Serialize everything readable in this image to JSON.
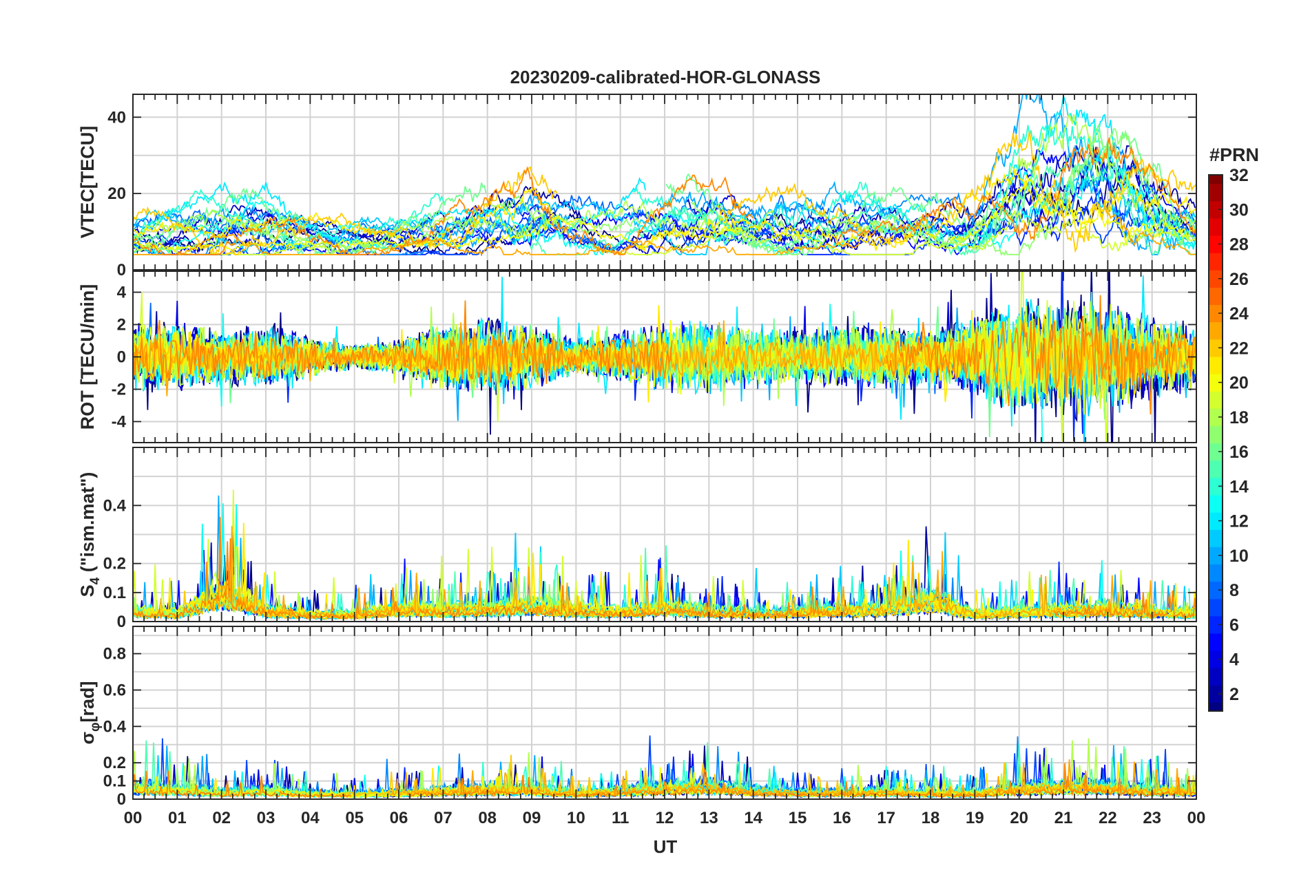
{
  "chart_data": {
    "type": "line",
    "title": "20230209-calibrated-HOR-GLONASS",
    "xlabel": "UT",
    "x_ticks": [
      "00",
      "01",
      "02",
      "03",
      "04",
      "05",
      "06",
      "07",
      "08",
      "09",
      "10",
      "11",
      "12",
      "13",
      "14",
      "15",
      "16",
      "17",
      "18",
      "19",
      "20",
      "21",
      "22",
      "23",
      "00"
    ],
    "x_range_hours": [
      0,
      24
    ],
    "grid": true,
    "colorbar": {
      "label": "#PRN",
      "range": [
        1,
        32
      ],
      "ticks": [
        2,
        4,
        6,
        8,
        10,
        12,
        14,
        16,
        18,
        20,
        22,
        24,
        26,
        28,
        30,
        32
      ],
      "tick_labels": [
        "2",
        "4",
        "6",
        "8",
        "10",
        "12",
        "14",
        "16",
        "18",
        "20",
        "22",
        "24",
        "26",
        "28",
        "30",
        "32"
      ],
      "colormap": "jet",
      "placement": "right"
    },
    "prn_series": [
      1,
      2,
      3,
      4,
      5,
      6,
      7,
      8,
      9,
      10,
      11,
      12,
      13,
      14,
      15,
      16,
      17,
      18,
      19,
      20,
      21,
      22,
      23,
      24
    ],
    "panels": [
      {
        "id": "vtec",
        "ylabel": "VTEC[TECU]",
        "ylim": [
          0,
          46
        ],
        "yticks": [
          0,
          20,
          40
        ],
        "ytick_labels": [
          "0",
          "20",
          "40"
        ],
        "hgrid": [
          0,
          10,
          20,
          30,
          40
        ],
        "signal": "vtec",
        "envelope_h": [
          0,
          1,
          2,
          3,
          4,
          5,
          6,
          7,
          8,
          9,
          10,
          11,
          12,
          13,
          14,
          15,
          16,
          17,
          18,
          19,
          20,
          21,
          22,
          23,
          24
        ],
        "envelope_v": [
          10,
          11,
          12,
          13,
          10,
          9,
          9,
          11,
          15,
          18,
          13,
          12,
          15,
          16,
          14,
          13,
          13,
          12,
          12,
          14,
          26,
          28,
          30,
          22,
          14
        ]
      },
      {
        "id": "rot",
        "ylabel": "ROT [TECU/min]",
        "ylim": [
          -5.3,
          5.3
        ],
        "yticks": [
          -4,
          -2,
          0,
          2,
          4
        ],
        "ytick_labels": [
          "-4",
          "-2",
          "0",
          "2",
          "4"
        ],
        "hgrid": [
          -4,
          -2,
          0,
          2,
          4
        ],
        "signal": "rot",
        "envelope_h": [
          0,
          1,
          2,
          3,
          4,
          5,
          6,
          7,
          8,
          9,
          10,
          11,
          12,
          13,
          14,
          15,
          16,
          17,
          18,
          19,
          20,
          21,
          22,
          23,
          24
        ],
        "envelope_v": [
          1.6,
          1.6,
          1.3,
          1.5,
          1.0,
          0.6,
          0.8,
          1.6,
          1.8,
          1.5,
          0.8,
          1.2,
          1.6,
          1.8,
          1.4,
          1.3,
          1.4,
          1.5,
          1.3,
          1.8,
          2.8,
          2.9,
          2.8,
          2.0,
          1.5
        ]
      },
      {
        "id": "s4",
        "ylabel": "S_4 (\"ism.mat\")",
        "ylim": [
          0,
          0.6
        ],
        "yticks": [
          0,
          0.1,
          0.2,
          0.4
        ],
        "ytick_labels": [
          "0",
          "0.1",
          "0.2",
          "0.4"
        ],
        "hgrid": [
          0,
          0.1,
          0.2,
          0.3,
          0.4,
          0.5
        ],
        "signal": "spiky",
        "envelope_h": [
          0,
          1,
          2,
          3,
          4,
          5,
          6,
          7,
          8,
          9,
          10,
          11,
          12,
          13,
          14,
          15,
          16,
          17,
          18,
          19,
          20,
          21,
          22,
          23,
          24
        ],
        "envelope_v": [
          0.07,
          0.06,
          0.22,
          0.08,
          0.05,
          0.05,
          0.09,
          0.08,
          0.09,
          0.11,
          0.08,
          0.07,
          0.1,
          0.07,
          0.06,
          0.07,
          0.08,
          0.09,
          0.16,
          0.05,
          0.07,
          0.08,
          0.09,
          0.07,
          0.06
        ]
      },
      {
        "id": "sigma-phi",
        "ylabel": "σ_φ[rad]",
        "ylim": [
          0,
          0.95
        ],
        "yticks": [
          0,
          0.1,
          0.2,
          0.4,
          0.6,
          0.8
        ],
        "ytick_labels": [
          "0",
          "0.1",
          "0.2",
          "0.4",
          "0.6",
          "0.8"
        ],
        "hgrid": [
          0,
          0.1,
          0.2,
          0.3,
          0.4,
          0.5,
          0.6,
          0.7,
          0.8,
          0.9
        ],
        "signal": "spiky",
        "envelope_h": [
          0,
          1,
          2,
          3,
          4,
          5,
          6,
          7,
          8,
          9,
          10,
          11,
          12,
          13,
          14,
          15,
          16,
          17,
          18,
          19,
          20,
          21,
          22,
          23,
          24
        ],
        "envelope_v": [
          0.14,
          0.12,
          0.08,
          0.1,
          0.07,
          0.06,
          0.08,
          0.1,
          0.12,
          0.12,
          0.07,
          0.1,
          0.13,
          0.15,
          0.1,
          0.08,
          0.08,
          0.09,
          0.07,
          0.07,
          0.13,
          0.15,
          0.14,
          0.1,
          0.1
        ]
      }
    ]
  }
}
